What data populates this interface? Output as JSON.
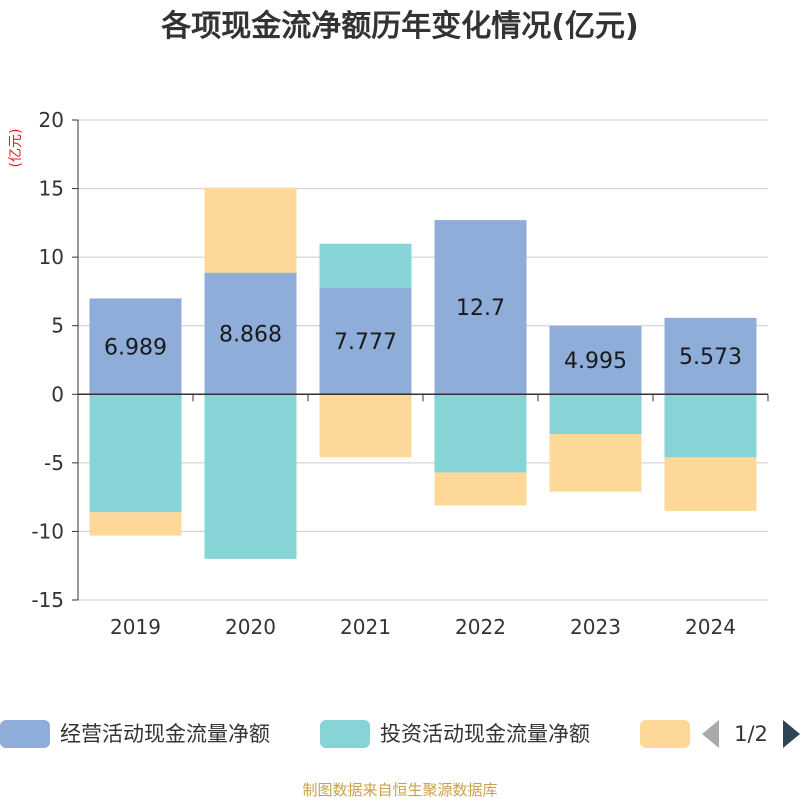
{
  "chart_data": {
    "type": "bar",
    "stacked": true,
    "title": "各项现金流净额历年变化情况(亿元)",
    "ylabel": "(亿元)",
    "xlabel": "",
    "categories": [
      "2019",
      "2020",
      "2021",
      "2022",
      "2023",
      "2024"
    ],
    "ylim": [
      -15,
      20
    ],
    "yticks": [
      -15,
      -10,
      -5,
      0,
      5,
      10,
      15,
      20
    ],
    "grid": true,
    "series": [
      {
        "name": "经营活动现金流量净额",
        "color": "#8eadd9",
        "values": [
          6.989,
          8.868,
          7.777,
          12.7,
          4.995,
          5.573
        ],
        "labels": [
          "6.989",
          "8.868",
          "7.777",
          "12.7",
          "4.995",
          "5.573"
        ]
      },
      {
        "name": "投资活动现金流量净额",
        "color": "#86d4d6",
        "values": [
          -8.6,
          -12.0,
          3.2,
          -5.7,
          -2.9,
          -4.6
        ]
      },
      {
        "name": "",
        "color": "#fed898",
        "values": [
          -1.7,
          6.2,
          -4.6,
          -2.4,
          -4.2,
          -3.9
        ]
      }
    ],
    "legend": {
      "position": "bottom",
      "page": "1/2"
    }
  },
  "source_text": "制图数据来自恒生聚源数据库",
  "colors": {
    "axis": "#333333",
    "grid": "#cccccc",
    "ylabel": "#e0201f",
    "source": "#c8a24a",
    "nav_active": "#2f4554",
    "nav_inactive": "#aaaaaa"
  }
}
